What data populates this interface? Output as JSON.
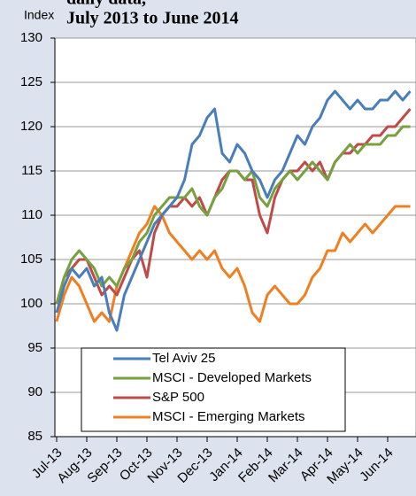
{
  "chart_data": {
    "type": "line",
    "title_fragment": "daily data,",
    "title": "July 2013 to June 2014",
    "y_label": "Index",
    "categories": [
      "Jul-13",
      null,
      null,
      null,
      "Aug-13",
      null,
      null,
      null,
      "Sep-13",
      null,
      null,
      null,
      "Oct-13",
      null,
      null,
      null,
      "Nov-13",
      null,
      null,
      null,
      "Dec-13",
      null,
      null,
      null,
      "Jan-14",
      null,
      null,
      null,
      "Feb-14",
      null,
      null,
      null,
      "Mar-14",
      null,
      null,
      null,
      "Apr-14",
      null,
      null,
      null,
      "May-14",
      null,
      null,
      null,
      "Jun-14",
      null,
      null,
      null
    ],
    "series": [
      {
        "name": "Tel Aviv 25",
        "color": "#4a7ebb",
        "values": [
          99,
          102,
          104,
          103,
          104,
          102,
          103,
          99,
          97,
          101,
          103,
          105,
          107,
          109,
          110,
          111,
          112,
          114,
          118,
          119,
          121,
          122,
          117,
          116,
          118,
          117,
          115,
          114,
          112,
          114,
          115,
          117,
          119,
          118,
          120,
          121,
          123,
          124,
          123,
          122,
          123,
          122,
          122,
          123,
          123,
          124,
          123,
          124
        ]
      },
      {
        "name": "MSCI - Developed Markets",
        "color": "#77a03f",
        "values": [
          100,
          103,
          105,
          106,
          105,
          104,
          102,
          103,
          102,
          104,
          105,
          107,
          108,
          110,
          111,
          112,
          112,
          112,
          113,
          111,
          110,
          112,
          113,
          115,
          115,
          114,
          115,
          112,
          111,
          113,
          114,
          115,
          114,
          115,
          116,
          115,
          114,
          116,
          117,
          118,
          117,
          118,
          118,
          118,
          119,
          119,
          120,
          120
        ]
      },
      {
        "name": "S&P 500",
        "color": "#be4b48",
        "values": [
          100,
          103,
          104,
          105,
          105,
          103,
          101,
          102,
          101,
          103,
          105,
          106,
          103,
          108,
          110,
          111,
          111,
          112,
          111,
          112,
          110,
          112,
          114,
          115,
          115,
          114,
          114,
          110,
          108,
          112,
          114,
          115,
          115,
          116,
          115,
          116,
          114,
          116,
          117,
          117,
          118,
          118,
          119,
          119,
          120,
          120,
          121,
          122
        ]
      },
      {
        "name": "MSCI - Emerging Markets",
        "color": "#f07f22",
        "values": [
          98,
          101,
          103,
          102,
          100,
          98,
          99,
          98,
          102,
          104,
          106,
          108,
          109,
          111,
          110,
          108,
          107,
          106,
          105,
          106,
          105,
          106,
          104,
          103,
          104,
          102,
          99,
          98,
          101,
          102,
          101,
          100,
          100,
          101,
          103,
          104,
          106,
          106,
          108,
          107,
          108,
          109,
          108,
          109,
          110,
          111,
          111,
          111
        ]
      }
    ],
    "ylim": [
      85,
      130
    ],
    "yticks": [
      85,
      90,
      95,
      100,
      105,
      110,
      115,
      120,
      125,
      130
    ],
    "grid": true
  }
}
